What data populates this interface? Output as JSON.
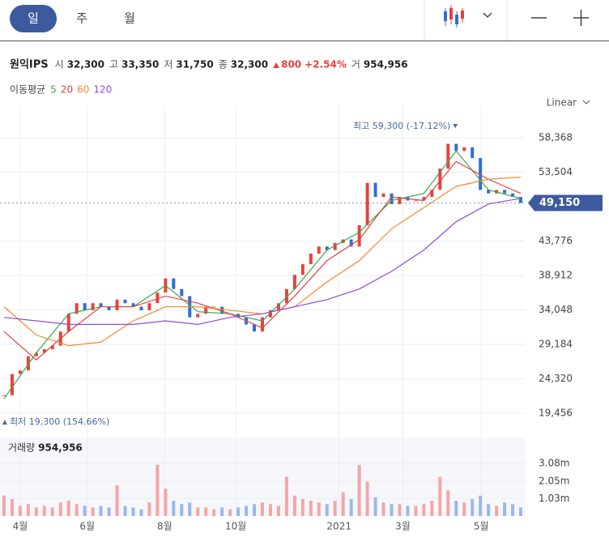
{
  "tabs": [
    "일",
    "주",
    "월"
  ],
  "quote": {
    "name": "원익IPS",
    "items": [
      {
        "label": "시",
        "value": "32,300"
      },
      {
        "label": "고",
        "value": "33,350"
      },
      {
        "label": "저",
        "value": "31,750"
      },
      {
        "label": "종",
        "value": "32,300"
      }
    ],
    "change": "800",
    "change_pct": "+2.54%",
    "volume_label": "거",
    "volume": "954,956"
  },
  "ma_legend": {
    "title": "이동평균",
    "items": [
      {
        "name": "5",
        "color": "#3aa64a"
      },
      {
        "name": "20",
        "color": "#e5413f"
      },
      {
        "name": "60",
        "color": "#f08a2c"
      },
      {
        "name": "120",
        "color": "#8b4fd8"
      }
    ]
  },
  "scale_mode": "Linear",
  "chart_data": [
    {
      "type": "candlestick",
      "up_color": "#e8413d",
      "down_color": "#2f6fd6",
      "closes": [
        22000,
        25000,
        25500,
        27500,
        28000,
        28500,
        29000,
        31000,
        33500,
        35000,
        34000,
        35000,
        34500,
        34000,
        35500,
        35000,
        34500,
        34000,
        35000,
        36500,
        38500,
        37000,
        36000,
        33000,
        33500,
        34500,
        34500,
        33500,
        33500,
        33000,
        32000,
        31000,
        33000,
        34000,
        35000,
        37000,
        39000,
        40500,
        42000,
        43000,
        42500,
        43500,
        44000,
        43000,
        46000,
        52000,
        50000,
        50500,
        49000,
        50000,
        49500,
        49500,
        50000,
        51000,
        54000,
        57500,
        56500,
        57000,
        55500,
        51000,
        50500,
        51000,
        50500,
        50000,
        49150
      ],
      "ma_x": [
        0,
        4,
        8,
        12,
        16,
        20,
        24,
        28,
        32,
        36,
        40,
        44,
        48,
        52,
        56,
        60,
        64
      ],
      "ma_series": [
        {
          "name": "5",
          "color": "#3aa64a",
          "values": [
            21500,
            28000,
            33500,
            34500,
            34500,
            37500,
            33800,
            33500,
            32500,
            37000,
            42500,
            45000,
            49500,
            50500,
            56500,
            51000,
            49800
          ]
        },
        {
          "name": "20",
          "color": "#e5413f",
          "values": [
            31000,
            27000,
            31000,
            34500,
            34500,
            36000,
            35000,
            33500,
            31500,
            36000,
            41000,
            44000,
            50000,
            49500,
            55000,
            52500,
            50500
          ]
        },
        {
          "name": "60",
          "color": "#f08a2c",
          "values": [
            34500,
            30500,
            29000,
            29500,
            32500,
            34500,
            34500,
            34000,
            33500,
            34500,
            38000,
            41000,
            45500,
            48500,
            51500,
            52500,
            52800
          ]
        },
        {
          "name": "120",
          "color": "#8b4fd8",
          "values": [
            33000,
            32500,
            32000,
            32000,
            32000,
            32500,
            32000,
            33000,
            33500,
            34500,
            35500,
            37000,
            39500,
            42500,
            46500,
            49000,
            49800
          ]
        }
      ],
      "ylim": [
        17171,
        61796
      ],
      "yticks": [
        {
          "value": 58368,
          "label": "58,368"
        },
        {
          "value": 53504,
          "label": "53,504"
        },
        {
          "value": 43776,
          "label": "43,776"
        },
        {
          "value": 38912,
          "label": "38,912"
        },
        {
          "value": 34048,
          "label": "34,048"
        },
        {
          "value": 29184,
          "label": "29,184"
        },
        {
          "value": 24320,
          "label": "24,320"
        },
        {
          "value": 19456,
          "label": "19,456"
        }
      ],
      "xticks": [
        {
          "value": 2,
          "label": "4월"
        },
        {
          "value": 10.3,
          "label": "6월"
        },
        {
          "value": 19.9,
          "label": "8월"
        },
        {
          "value": 28.7,
          "label": "10월"
        },
        {
          "value": 41.5,
          "label": "2021"
        },
        {
          "value": 49.4,
          "label": "3월"
        },
        {
          "value": 59.1,
          "label": "5월"
        }
      ],
      "last_price": {
        "value": 49150,
        "label": "49,150"
      },
      "high_annotation": "최고 59,300 (-17.12%)",
      "low_annotation": "최저 19,300 (154.66%)",
      "grid": true
    },
    {
      "type": "bar",
      "title": "거래량",
      "title_value": "954,956",
      "up_color": "#f4a6a6",
      "down_color": "#9bb8ea",
      "values": [
        1.2,
        1.0,
        0.6,
        0.7,
        0.5,
        0.6,
        0.5,
        0.8,
        0.9,
        0.7,
        0.6,
        0.5,
        0.6,
        0.5,
        1.8,
        0.6,
        0.5,
        0.4,
        0.8,
        3.0,
        1.6,
        0.9,
        0.7,
        0.8,
        0.5,
        0.5,
        0.4,
        0.5,
        0.4,
        0.5,
        0.6,
        0.7,
        0.8,
        0.7,
        0.6,
        2.3,
        1.2,
        1.0,
        0.9,
        0.8,
        0.7,
        0.9,
        1.4,
        1.0,
        3.0,
        2.0,
        1.1,
        0.8,
        0.7,
        0.7,
        0.6,
        0.6,
        0.7,
        0.9,
        2.3,
        1.5,
        0.9,
        0.8,
        1.0,
        1.2,
        0.7,
        0.6,
        0.8,
        0.7,
        0.5
      ],
      "ylim": [
        0,
        4.6
      ],
      "yticks": [
        {
          "value": 3.08,
          "label": "3.08m"
        },
        {
          "value": 2.05,
          "label": "2.05m"
        },
        {
          "value": 1.03,
          "label": "1.03m"
        }
      ]
    }
  ]
}
